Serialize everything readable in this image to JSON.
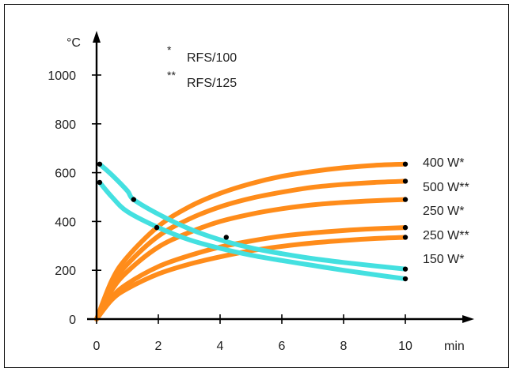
{
  "chart_data": {
    "type": "line",
    "xlabel": "min",
    "ylabel": "°C",
    "xlim": [
      0,
      10
    ],
    "ylim": [
      0,
      1000
    ],
    "x_ticks": [
      "0",
      "2",
      "4",
      "6",
      "8",
      "10"
    ],
    "y_ticks": [
      "0",
      "200",
      "400",
      "600",
      "800",
      "1000"
    ],
    "x_tick_values": [
      0,
      2,
      4,
      6,
      8,
      10
    ],
    "y_tick_values": [
      0,
      200,
      400,
      600,
      800,
      1000
    ],
    "grid": false,
    "legend_notes": [
      {
        "marker": "*",
        "text": "RFS/100"
      },
      {
        "marker": "**",
        "text": "RFS/125"
      }
    ],
    "heating_series": [
      {
        "name": "400 W*",
        "color": "#ff8c1a",
        "final_value": 635,
        "x": [
          0,
          0.5,
          1,
          2,
          3,
          4,
          5,
          6,
          7,
          8,
          9,
          10
        ],
        "y": [
          0,
          160,
          255,
          380,
          460,
          515,
          555,
          585,
          605,
          620,
          630,
          635
        ]
      },
      {
        "name": "500 W**",
        "color": "#ff8c1a",
        "final_value": 565,
        "x": [
          0,
          0.5,
          1,
          2,
          3,
          4,
          5,
          6,
          7,
          8,
          9,
          10
        ],
        "y": [
          0,
          140,
          225,
          340,
          410,
          460,
          495,
          520,
          540,
          552,
          560,
          565
        ]
      },
      {
        "name": "250 W*",
        "color": "#ff8c1a",
        "final_value": 490,
        "x": [
          0,
          0.5,
          1,
          2,
          3,
          4,
          5,
          6,
          7,
          8,
          9,
          10
        ],
        "y": [
          0,
          120,
          195,
          295,
          355,
          400,
          430,
          452,
          468,
          478,
          485,
          490
        ]
      },
      {
        "name": "250 W**",
        "color": "#ff8c1a",
        "final_value": 375,
        "x": [
          0,
          0.5,
          1,
          2,
          3,
          4,
          5,
          6,
          7,
          8,
          9,
          10
        ],
        "y": [
          0,
          90,
          145,
          215,
          260,
          295,
          320,
          340,
          353,
          363,
          370,
          375
        ]
      },
      {
        "name": "150 W*",
        "color": "#ff8c1a",
        "final_value": 335,
        "x": [
          0,
          0.5,
          1,
          2,
          3,
          4,
          5,
          6,
          7,
          8,
          9,
          10
        ],
        "y": [
          0,
          80,
          125,
          185,
          225,
          255,
          280,
          298,
          312,
          322,
          330,
          335
        ]
      }
    ],
    "cooling_series": [
      {
        "color": "#44e0e0",
        "x": [
          0.1,
          0.5,
          1,
          1.2,
          2,
          3,
          4,
          5,
          6,
          7,
          8,
          9,
          10
        ],
        "y": [
          635,
          590,
          525,
          490,
          430,
          370,
          325,
          292,
          268,
          248,
          232,
          218,
          205
        ],
        "points_x": [
          0.1,
          1.2,
          4.2,
          10
        ],
        "points_y": [
          635,
          490,
          335,
          205
        ]
      },
      {
        "color": "#44e0e0",
        "x": [
          0.1,
          0.5,
          1,
          2,
          3,
          4,
          5,
          6,
          7,
          8,
          9,
          10
        ],
        "y": [
          560,
          500,
          440,
          375,
          325,
          290,
          262,
          240,
          220,
          200,
          182,
          165
        ],
        "points_x": [
          0.1,
          1.95,
          10
        ],
        "points_y": [
          560,
          375,
          165
        ]
      }
    ],
    "colors": {
      "heating": "#ff8c1a",
      "cooling": "#44e0e0",
      "axis": "#000000"
    }
  }
}
